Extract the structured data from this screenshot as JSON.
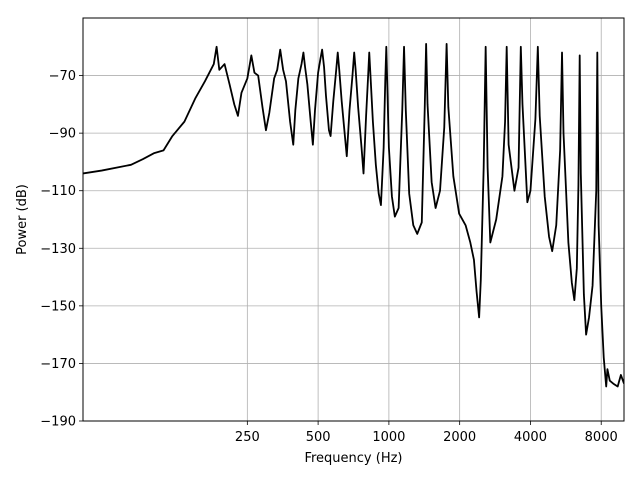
{
  "chart_data": {
    "type": "line",
    "title": "",
    "xlabel": "Frequency (Hz)",
    "ylabel": "Power (dB)",
    "x_scale": "log2",
    "xlim": [
      50,
      10000
    ],
    "ylim": [
      -190,
      -50
    ],
    "xticks": [
      {
        "value": 250,
        "label": "250"
      },
      {
        "value": 500,
        "label": "500"
      },
      {
        "value": 1000,
        "label": "1000"
      },
      {
        "value": 2000,
        "label": "2000"
      },
      {
        "value": 4000,
        "label": "4000"
      },
      {
        "value": 8000,
        "label": "8000"
      }
    ],
    "yticks": [
      {
        "value": -70,
        "label": "−70"
      },
      {
        "value": -90,
        "label": "−90"
      },
      {
        "value": -110,
        "label": "−110"
      },
      {
        "value": -130,
        "label": "−130"
      },
      {
        "value": -150,
        "label": "−150"
      },
      {
        "value": -170,
        "label": "−170"
      },
      {
        "value": -190,
        "label": "−190"
      }
    ],
    "grid": true,
    "series": [
      {
        "color": "#000000",
        "points": [
          [
            50,
            -104
          ],
          [
            60,
            -103
          ],
          [
            80,
            -101
          ],
          [
            90,
            -99
          ],
          [
            100,
            -97
          ],
          [
            110,
            -96
          ],
          [
            120,
            -91
          ],
          [
            135,
            -86
          ],
          [
            150,
            -78
          ],
          [
            165,
            -72
          ],
          [
            180,
            -66
          ],
          [
            185,
            -60
          ],
          [
            190,
            -68
          ],
          [
            200,
            -66
          ],
          [
            210,
            -73
          ],
          [
            220,
            -80
          ],
          [
            228,
            -84
          ],
          [
            236,
            -76
          ],
          [
            250,
            -71
          ],
          [
            260,
            -63
          ],
          [
            268,
            -69
          ],
          [
            278,
            -70
          ],
          [
            290,
            -81
          ],
          [
            300,
            -89
          ],
          [
            310,
            -83
          ],
          [
            325,
            -71
          ],
          [
            335,
            -68
          ],
          [
            345,
            -61
          ],
          [
            355,
            -68
          ],
          [
            365,
            -72
          ],
          [
            380,
            -86
          ],
          [
            392,
            -94
          ],
          [
            400,
            -82
          ],
          [
            412,
            -71
          ],
          [
            425,
            -66
          ],
          [
            433,
            -62
          ],
          [
            440,
            -67
          ],
          [
            450,
            -73
          ],
          [
            465,
            -86
          ],
          [
            475,
            -94
          ],
          [
            485,
            -82
          ],
          [
            500,
            -69
          ],
          [
            512,
            -64
          ],
          [
            520,
            -61
          ],
          [
            530,
            -67
          ],
          [
            540,
            -77
          ],
          [
            556,
            -89
          ],
          [
            565,
            -91
          ],
          [
            580,
            -79
          ],
          [
            597,
            -68
          ],
          [
            606,
            -62
          ],
          [
            615,
            -68
          ],
          [
            630,
            -79
          ],
          [
            650,
            -91
          ],
          [
            662,
            -98
          ],
          [
            680,
            -82
          ],
          [
            700,
            -70
          ],
          [
            712,
            -62
          ],
          [
            722,
            -68
          ],
          [
            740,
            -81
          ],
          [
            765,
            -95
          ],
          [
            780,
            -104
          ],
          [
            800,
            -84
          ],
          [
            815,
            -71
          ],
          [
            825,
            -62
          ],
          [
            835,
            -70
          ],
          [
            855,
            -86
          ],
          [
            880,
            -101
          ],
          [
            905,
            -111
          ],
          [
            925,
            -115
          ],
          [
            950,
            -95
          ],
          [
            965,
            -72
          ],
          [
            975,
            -60
          ],
          [
            985,
            -74
          ],
          [
            1000,
            -95
          ],
          [
            1030,
            -112
          ],
          [
            1060,
            -119
          ],
          [
            1100,
            -116
          ],
          [
            1140,
            -82
          ],
          [
            1160,
            -60
          ],
          [
            1180,
            -82
          ],
          [
            1220,
            -111
          ],
          [
            1270,
            -122
          ],
          [
            1320,
            -125
          ],
          [
            1380,
            -121
          ],
          [
            1420,
            -82
          ],
          [
            1440,
            -59
          ],
          [
            1460,
            -80
          ],
          [
            1520,
            -107
          ],
          [
            1580,
            -116
          ],
          [
            1650,
            -110
          ],
          [
            1720,
            -88
          ],
          [
            1760,
            -59
          ],
          [
            1790,
            -81
          ],
          [
            1880,
            -105
          ],
          [
            1990,
            -118
          ],
          [
            2120,
            -122
          ],
          [
            2220,
            -128
          ],
          [
            2300,
            -134
          ],
          [
            2360,
            -145
          ],
          [
            2420,
            -154
          ],
          [
            2460,
            -141
          ],
          [
            2530,
            -102
          ],
          [
            2580,
            -60
          ],
          [
            2630,
            -102
          ],
          [
            2700,
            -128
          ],
          [
            2860,
            -120
          ],
          [
            3040,
            -105
          ],
          [
            3120,
            -86
          ],
          [
            3170,
            -60
          ],
          [
            3230,
            -94
          ],
          [
            3420,
            -110
          ],
          [
            3560,
            -102
          ],
          [
            3640,
            -60
          ],
          [
            3700,
            -80
          ],
          [
            3880,
            -114
          ],
          [
            4000,
            -110
          ],
          [
            4200,
            -85
          ],
          [
            4300,
            -60
          ],
          [
            4380,
            -84
          ],
          [
            4600,
            -112
          ],
          [
            4800,
            -126
          ],
          [
            4950,
            -131
          ],
          [
            5150,
            -122
          ],
          [
            5350,
            -96
          ],
          [
            5450,
            -62
          ],
          [
            5530,
            -90
          ],
          [
            5800,
            -128
          ],
          [
            6000,
            -142
          ],
          [
            6150,
            -148
          ],
          [
            6300,
            -137
          ],
          [
            6400,
            -108
          ],
          [
            6480,
            -63
          ],
          [
            6550,
            -104
          ],
          [
            6750,
            -146
          ],
          [
            6900,
            -160
          ],
          [
            7100,
            -154
          ],
          [
            7350,
            -143
          ],
          [
            7620,
            -110
          ],
          [
            7700,
            -62
          ],
          [
            7800,
            -122
          ],
          [
            8000,
            -150
          ],
          [
            8200,
            -168
          ],
          [
            8400,
            -178
          ],
          [
            8500,
            -172
          ],
          [
            8700,
            -176
          ],
          [
            9000,
            -177
          ],
          [
            9400,
            -178
          ],
          [
            9700,
            -174
          ],
          [
            10000,
            -177
          ]
        ]
      }
    ]
  }
}
